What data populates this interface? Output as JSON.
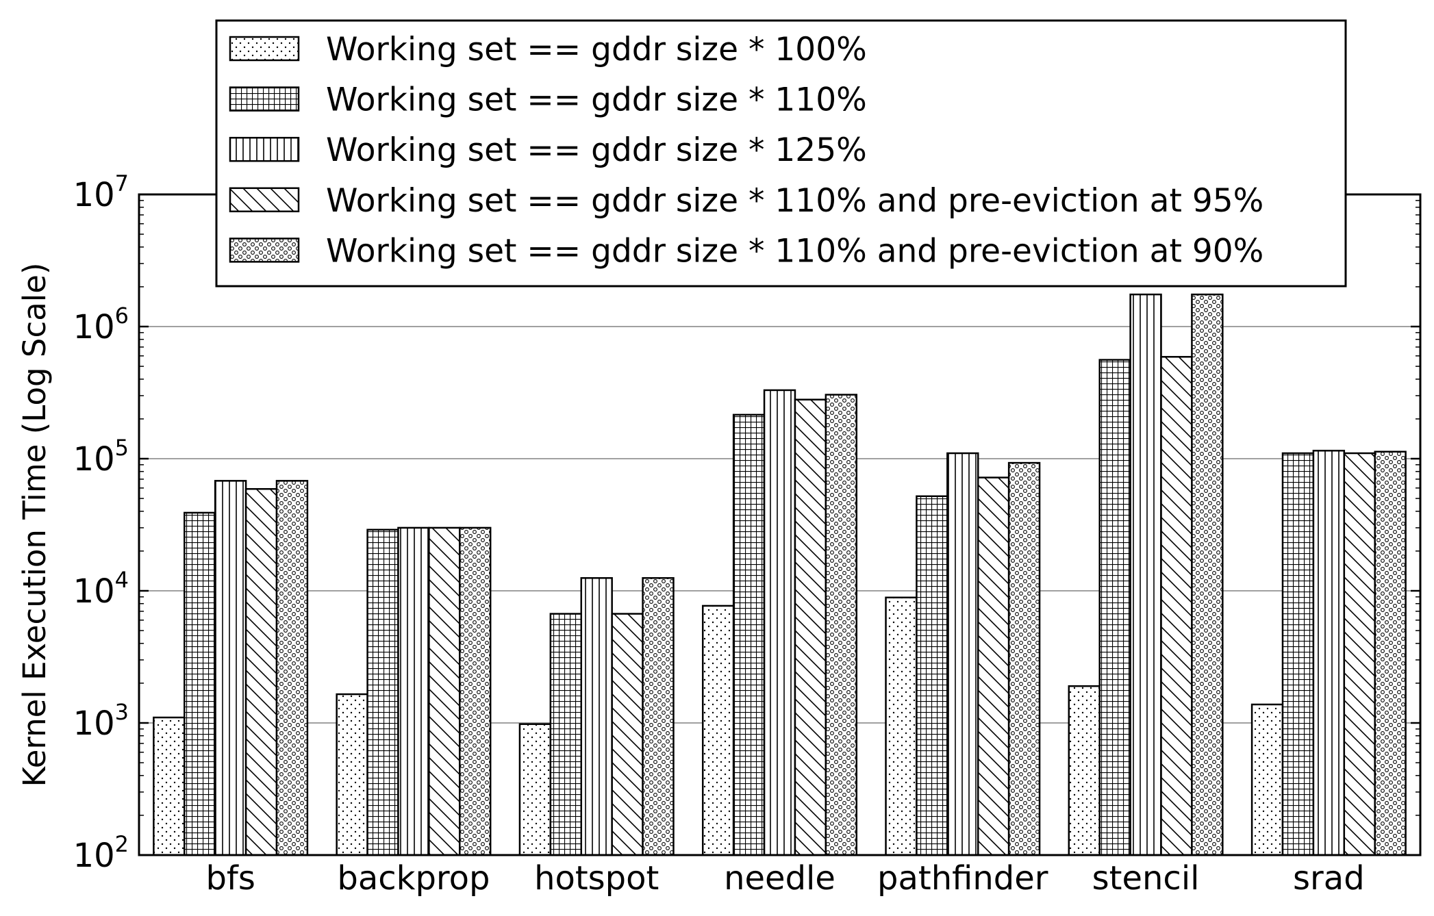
{
  "chart_data": {
    "type": "bar",
    "title": "",
    "xlabel": "",
    "ylabel": "Kernel Execution Time (Log Scale)",
    "yscale": "log",
    "ylim": [
      100,
      10000000
    ],
    "yticks": [
      {
        "base": "10",
        "exp": "2",
        "value": 100
      },
      {
        "base": "10",
        "exp": "3",
        "value": 1000
      },
      {
        "base": "10",
        "exp": "4",
        "value": 10000
      },
      {
        "base": "10",
        "exp": "5",
        "value": 100000
      },
      {
        "base": "10",
        "exp": "6",
        "value": 1000000
      },
      {
        "base": "10",
        "exp": "7",
        "value": 10000000
      }
    ],
    "grid": "horizontal major",
    "legend_position": "top-inside",
    "categories": [
      "bfs",
      "backprop",
      "hotspot",
      "needle",
      "pathfinder",
      "stencil",
      "srad"
    ],
    "series": [
      {
        "name": "Working set == gddr size * 100%",
        "pattern": "dots",
        "values": [
          1100,
          1650,
          980,
          7700,
          8900,
          1900,
          1380
        ]
      },
      {
        "name": "Working set == gddr size * 110%",
        "pattern": "grid",
        "values": [
          39000,
          29000,
          6700,
          215000,
          52000,
          560000,
          110000
        ]
      },
      {
        "name": "Working set == gddr size * 125%",
        "pattern": "vertical",
        "values": [
          68000,
          30000,
          12500,
          330000,
          110000,
          1750000,
          115000
        ]
      },
      {
        "name": "Working set == gddr size * 110% and pre-eviction at 95%",
        "pattern": "diagonal",
        "values": [
          59000,
          30000,
          6700,
          280000,
          72000,
          590000,
          110000
        ]
      },
      {
        "name": "Working set == gddr size * 110% and pre-eviction at 90%",
        "pattern": "circles",
        "values": [
          68000,
          30000,
          12500,
          305000,
          93000,
          1750000,
          113000
        ]
      }
    ],
    "colors": {
      "bar_fill": "#ffffff",
      "bar_stroke": "#000000",
      "grid": "#808080"
    }
  }
}
